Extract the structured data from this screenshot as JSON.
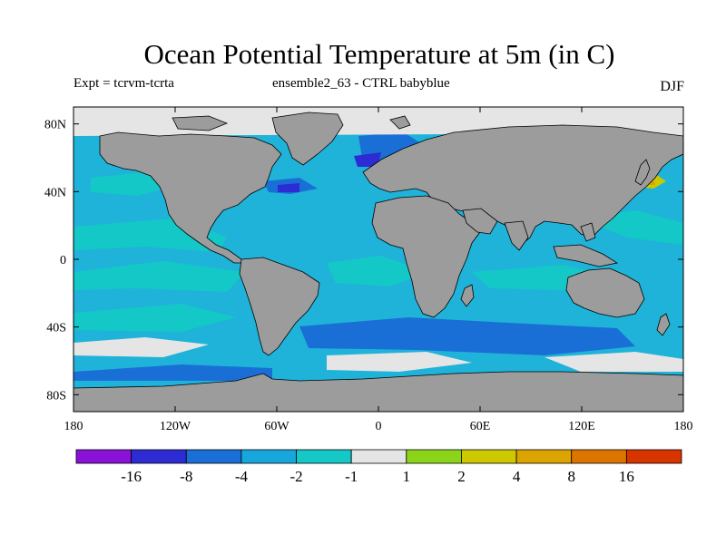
{
  "title": "Ocean Potential Temperature at 5m (in C)",
  "subtitle_left": "Expt = tcrvm-tcrta",
  "subtitle_center": "ensemble2_63 - CTRL babyblue",
  "subtitle_right": "DJF",
  "map": {
    "lon_range": [
      -180,
      180
    ],
    "lat_range": [
      -90,
      90
    ],
    "x_ticks": [
      {
        "value": -180,
        "label": "180"
      },
      {
        "value": -120,
        "label": "120W"
      },
      {
        "value": -60,
        "label": "60W"
      },
      {
        "value": 0,
        "label": "0"
      },
      {
        "value": 60,
        "label": "60E"
      },
      {
        "value": 120,
        "label": "120E"
      },
      {
        "value": 180,
        "label": "180"
      }
    ],
    "y_ticks": [
      {
        "value": 80,
        "label": "80N"
      },
      {
        "value": 40,
        "label": "40N"
      },
      {
        "value": 0,
        "label": "0"
      },
      {
        "value": -40,
        "label": "40S"
      },
      {
        "value": -80,
        "label": "80S"
      }
    ],
    "land_color": "#9c9c9c",
    "ocean_background_color": "#1fb3d9"
  },
  "colorbar": {
    "colors": [
      "#8a12d8",
      "#2d2bd3",
      "#1a6fd6",
      "#18a7dc",
      "#14c8c8",
      "#e5e5e5",
      "#8bd41a",
      "#cec800",
      "#dca400",
      "#dc7400",
      "#d83400"
    ],
    "labels": [
      {
        "boundary": 1,
        "label": "-16"
      },
      {
        "boundary": 2,
        "label": "-8"
      },
      {
        "boundary": 3,
        "label": "-4"
      },
      {
        "boundary": 4,
        "label": "-2"
      },
      {
        "boundary": 5,
        "label": "-1"
      },
      {
        "boundary": 6,
        "label": "1"
      },
      {
        "boundary": 7,
        "label": "2"
      },
      {
        "boundary": 8,
        "label": "4"
      },
      {
        "boundary": 9,
        "label": "8"
      },
      {
        "boundary": 10,
        "label": "16"
      }
    ]
  }
}
